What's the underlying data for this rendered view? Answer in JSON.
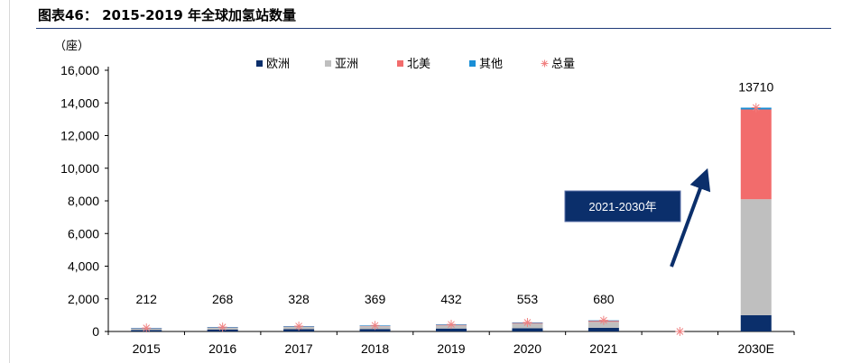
{
  "header": {
    "title": "图表46：  2015-2019 年全球加氢站数量"
  },
  "chart_data": {
    "type": "bar",
    "stacked": true,
    "unit_label": "（座）",
    "categories": [
      "2015",
      "2016",
      "2017",
      "2018",
      "2019",
      "2020",
      "2021",
      "",
      "2030E"
    ],
    "y_ticks": [
      "0",
      "2,000",
      "4,000",
      "6,000",
      "8,000",
      "10,000",
      "12,000",
      "14,000",
      "16,000"
    ],
    "ylim": [
      0,
      16000
    ],
    "series": [
      {
        "name": "欧洲",
        "color": "#0b2f6b",
        "values": [
          90,
          120,
          140,
          150,
          180,
          200,
          228,
          null,
          1000
        ]
      },
      {
        "name": "亚洲",
        "color": "#bfbfbf",
        "values": [
          100,
          120,
          150,
          170,
          190,
          280,
          363,
          null,
          7100
        ]
      },
      {
        "name": "北美",
        "color": "#f26c6c",
        "values": [
          12,
          20,
          28,
          39,
          52,
          63,
          74,
          null,
          5500
        ]
      },
      {
        "name": "其他",
        "color": "#1a8fd6",
        "values": [
          10,
          8,
          10,
          10,
          10,
          10,
          15,
          null,
          110
        ]
      }
    ],
    "total": {
      "name": "总量",
      "color": "#f08080",
      "values": [
        212,
        268,
        328,
        369,
        432,
        553,
        680,
        0,
        13710
      ],
      "labels": [
        "212",
        "268",
        "328",
        "369",
        "432",
        "553",
        "680",
        "",
        "13710"
      ]
    },
    "annotation": {
      "text": "2021-2030年",
      "box_color": "#0b2f6b"
    },
    "legend": {
      "position": "top-center"
    },
    "grid": false
  }
}
